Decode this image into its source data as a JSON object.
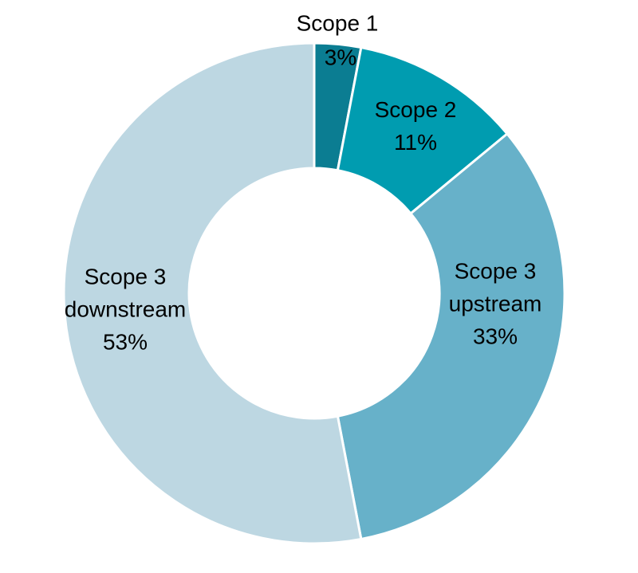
{
  "chart_data": {
    "type": "pie",
    "subtype": "donut",
    "title": "",
    "categories": [
      "Scope 1",
      "Scope 2",
      "Scope 3 upstream",
      "Scope 3 downstream"
    ],
    "values": [
      3,
      11,
      33,
      53
    ],
    "unit": "%",
    "start_angle_deg": 0,
    "direction": "clockwise",
    "inner_radius_ratio": 0.5,
    "legend_position": "none",
    "grid": false,
    "background_color": "#ffffff",
    "separator_color": "#ffffff",
    "label_color": "#000000",
    "slices": [
      {
        "id": "scope-1",
        "name_lines": [
          "Scope 1"
        ],
        "value": 3,
        "value_label": "3%",
        "color": "#0b7d92",
        "label_placement": "outside-top"
      },
      {
        "id": "scope-2",
        "name_lines": [
          "Scope 2"
        ],
        "value": 11,
        "value_label": "11%",
        "color": "#009cb0",
        "label_placement": "inside"
      },
      {
        "id": "scope-3-upstream",
        "name_lines": [
          "Scope 3",
          "upstream"
        ],
        "value": 33,
        "value_label": "33%",
        "color": "#67b1c9",
        "label_placement": "inside"
      },
      {
        "id": "scope-3-downstream",
        "name_lines": [
          "Scope 3",
          "downstream"
        ],
        "value": 53,
        "value_label": "53%",
        "color": "#bdd7e2",
        "label_placement": "inside"
      }
    ]
  }
}
